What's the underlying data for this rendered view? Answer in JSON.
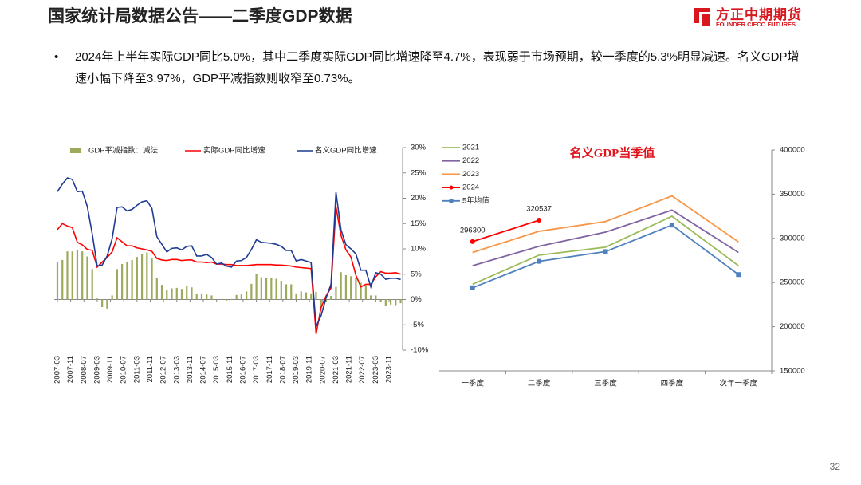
{
  "header": {
    "title": "国家统计局数据公告——二季度GDP数据",
    "logo_cn": "方正中期期货",
    "logo_en": "FOUNDER CIFCO FUTURES"
  },
  "bullet": "2024年上半年实际GDP同比5.0%，其中二季度实际GDP同比增速降至4.7%，表现弱于市场预期，较一季度的5.3%明显减速。名义GDP增速小幅下降至3.97%，GDP平减指数则收窄至0.73%。",
  "page_number": "32",
  "chart_data": [
    {
      "type": "bar_line",
      "x": [
        "2007-03",
        "2007-06",
        "2007-09",
        "2007-12",
        "2008-03",
        "2008-06",
        "2008-09",
        "2008-12",
        "2009-03",
        "2009-06",
        "2009-09",
        "2009-12",
        "2010-03",
        "2010-06",
        "2010-09",
        "2010-12",
        "2011-03",
        "2011-06",
        "2011-09",
        "2011-12",
        "2012-03",
        "2012-06",
        "2012-09",
        "2012-12",
        "2013-03",
        "2013-06",
        "2013-09",
        "2013-12",
        "2014-03",
        "2014-06",
        "2014-09",
        "2014-12",
        "2015-03",
        "2015-06",
        "2015-09",
        "2015-12",
        "2016-03",
        "2016-06",
        "2016-09",
        "2016-12",
        "2017-03",
        "2017-06",
        "2017-09",
        "2017-12",
        "2018-03",
        "2018-06",
        "2018-09",
        "2018-12",
        "2019-03",
        "2019-06",
        "2019-09",
        "2019-12",
        "2020-03",
        "2020-06",
        "2020-09",
        "2020-12",
        "2021-03",
        "2021-06",
        "2021-09",
        "2021-12",
        "2022-03",
        "2022-06",
        "2022-09",
        "2022-12",
        "2023-03",
        "2023-06",
        "2023-09",
        "2023-12",
        "2024-03",
        "2024-06"
      ],
      "series": [
        {
          "name": "GDP平减指数：减法",
          "type": "bar",
          "color": "#9bab5b",
          "values": [
            7.5,
            7.8,
            9.5,
            9.5,
            9.8,
            9.5,
            8.5,
            6.0,
            0.2,
            -1.5,
            -1.8,
            0.8,
            6.0,
            7.0,
            7.5,
            7.8,
            8.4,
            9.0,
            9.3,
            8.1,
            4.3,
            2.9,
            1.9,
            2.2,
            2.3,
            2.1,
            2.7,
            2.4,
            1.1,
            1.2,
            1.0,
            0.8,
            0.0,
            0.1,
            -0.2,
            0.1,
            0.9,
            1.0,
            1.6,
            3.1,
            5.0,
            4.4,
            4.3,
            4.2,
            4.1,
            3.7,
            3.0,
            3.0,
            1.2,
            1.6,
            1.4,
            1.2,
            1.5,
            -1.6,
            -0.4,
            0.7,
            2.5,
            5.4,
            4.8,
            4.6,
            4.2,
            3.3,
            2.8,
            0.8,
            0.8,
            -0.5,
            -1.2,
            -1.0,
            -1.1,
            -0.73
          ]
        },
        {
          "name": "实际GDP同比增速",
          "type": "line",
          "color": "#ff0000",
          "values": [
            13.8,
            15.0,
            14.5,
            14.2,
            11.3,
            10.8,
            9.9,
            9.7,
            6.4,
            7.4,
            8.3,
            9.4,
            12.2,
            11.4,
            10.6,
            10.6,
            10.2,
            10.0,
            9.8,
            9.5,
            8.1,
            7.8,
            7.7,
            7.9,
            7.9,
            7.7,
            7.8,
            7.8,
            7.4,
            7.4,
            7.3,
            7.4,
            7.0,
            7.0,
            6.9,
            6.9,
            6.7,
            6.7,
            6.7,
            6.8,
            6.9,
            6.9,
            6.9,
            6.9,
            6.8,
            6.8,
            6.7,
            6.6,
            6.4,
            6.3,
            6.2,
            6.1,
            -6.8,
            -1.6,
            0.7,
            2.3,
            18.3,
            12.7,
            9.8,
            8.4,
            4.8,
            2.5,
            3.0,
            3.0,
            4.5,
            5.5,
            5.2,
            5.2,
            5.3,
            5.0
          ]
        },
        {
          "name": "名义GDP同比增速",
          "type": "line",
          "color": "#1f3a93",
          "values": [
            21.3,
            22.8,
            24.0,
            23.7,
            21.3,
            21.4,
            18.4,
            13.0,
            6.6,
            6.8,
            8.6,
            12.0,
            18.2,
            18.3,
            17.5,
            17.8,
            18.6,
            19.3,
            19.5,
            18.0,
            12.4,
            10.9,
            9.4,
            10.1,
            10.2,
            9.8,
            10.5,
            10.6,
            8.6,
            8.6,
            8.9,
            8.3,
            7.0,
            7.2,
            6.6,
            6.4,
            7.6,
            7.7,
            8.3,
            9.9,
            11.8,
            11.3,
            11.2,
            11.1,
            10.9,
            10.5,
            9.7,
            9.7,
            7.6,
            7.9,
            7.6,
            7.3,
            -5.3,
            -3.2,
            0.3,
            3.0,
            21.2,
            13.8,
            10.8,
            10.0,
            9.0,
            5.8,
            5.8,
            2.5,
            5.3,
            5.0,
            4.0,
            4.2,
            4.2,
            3.97
          ]
        }
      ],
      "xticks": [
        "2007-03",
        "2007-11",
        "2008-07",
        "2009-03",
        "2009-11",
        "2010-07",
        "2011-03",
        "2011-11",
        "2012-07",
        "2013-03",
        "2013-11",
        "2014-07",
        "2015-03",
        "2015-11",
        "2016-07",
        "2017-03",
        "2017-11",
        "2018-07",
        "2019-03",
        "2019-11",
        "2020-07",
        "2021-03",
        "2021-11",
        "2022-07",
        "2023-03",
        "2023-11"
      ],
      "ylim": [
        -10,
        30
      ],
      "yticks": [
        {
          "value": -10,
          "label": "-10%"
        },
        {
          "value": -5,
          "label": "-5%"
        },
        {
          "value": 0,
          "label": "0%"
        },
        {
          "value": 5,
          "label": "5%"
        },
        {
          "value": 10,
          "label": "10%"
        },
        {
          "value": 15,
          "label": "15%"
        },
        {
          "value": 20,
          "label": "20%"
        },
        {
          "value": 25,
          "label": "25%"
        },
        {
          "value": 30,
          "label": "30%"
        }
      ],
      "legend": "top"
    },
    {
      "type": "line",
      "title": "名义GDP当季值",
      "categories": [
        "一季度",
        "二季度",
        "三季度",
        "四季度",
        "次年一季度"
      ],
      "series": [
        {
          "name": "2021",
          "color": "#9bbb59",
          "values": [
            248000,
            281000,
            290000,
            325000,
            269000
          ]
        },
        {
          "name": "2022",
          "color": "#8064a2",
          "values": [
            269000,
            291000,
            307000,
            332000,
            284000
          ]
        },
        {
          "name": "2023",
          "color": "#f79646",
          "values": [
            284000,
            308000,
            319000,
            348000,
            296000
          ]
        },
        {
          "name": "2024",
          "color": "#ff0000",
          "marker": "circle",
          "show_values": true,
          "values": [
            296300,
            320537,
            null,
            null,
            null
          ]
        },
        {
          "name": "5年均值",
          "color": "#4f81bd",
          "marker": "square",
          "values": [
            244000,
            274000,
            285000,
            315000,
            259000
          ]
        }
      ],
      "ylim": [
        150000,
        400000
      ],
      "yticks": [
        150000,
        200000,
        250000,
        300000,
        350000,
        400000
      ],
      "legend": "top-left"
    }
  ]
}
